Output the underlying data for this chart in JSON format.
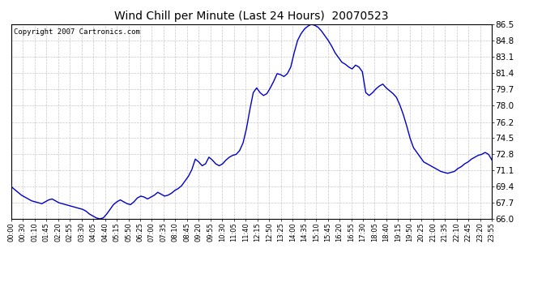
{
  "title": "Wind Chill per Minute (Last 24 Hours)  20070523",
  "copyright": "Copyright 2007 Cartronics.com",
  "line_color": "#0000cc",
  "background_color": "#ffffff",
  "plot_bg_color": "#ffffff",
  "grid_color": "#c8c8c8",
  "ylim": [
    66.0,
    86.5
  ],
  "yticks": [
    66.0,
    67.7,
    69.4,
    71.1,
    72.8,
    74.5,
    76.2,
    78.0,
    79.7,
    81.4,
    83.1,
    84.8,
    86.5
  ],
  "x_labels": [
    "00:00",
    "00:30",
    "01:10",
    "01:45",
    "02:20",
    "02:55",
    "03:30",
    "04:05",
    "04:40",
    "05:15",
    "05:50",
    "06:25",
    "07:00",
    "07:35",
    "08:10",
    "08:45",
    "09:20",
    "09:55",
    "10:30",
    "11:05",
    "11:40",
    "12:15",
    "12:50",
    "13:25",
    "14:00",
    "14:35",
    "15:10",
    "15:45",
    "16:20",
    "16:55",
    "17:30",
    "18:05",
    "18:40",
    "19:15",
    "19:50",
    "20:25",
    "21:00",
    "21:35",
    "22:10",
    "22:45",
    "23:20",
    "23:55"
  ],
  "data_y": [
    69.4,
    69.1,
    68.8,
    68.5,
    68.3,
    68.1,
    67.9,
    67.8,
    67.7,
    67.6,
    67.8,
    68.0,
    68.1,
    67.9,
    67.7,
    67.6,
    67.5,
    67.4,
    67.3,
    67.2,
    67.1,
    67.0,
    66.8,
    66.5,
    66.3,
    66.1,
    66.0,
    66.1,
    66.5,
    67.0,
    67.5,
    67.8,
    68.0,
    67.8,
    67.6,
    67.5,
    67.8,
    68.2,
    68.4,
    68.3,
    68.1,
    68.3,
    68.5,
    68.8,
    68.6,
    68.4,
    68.5,
    68.7,
    69.0,
    69.2,
    69.5,
    70.0,
    70.5,
    71.2,
    72.3,
    72.0,
    71.6,
    71.8,
    72.5,
    72.2,
    71.8,
    71.6,
    71.8,
    72.2,
    72.5,
    72.7,
    72.8,
    73.2,
    74.0,
    75.5,
    77.5,
    79.3,
    79.8,
    79.3,
    79.0,
    79.2,
    79.8,
    80.5,
    81.3,
    81.2,
    81.0,
    81.3,
    82.0,
    83.5,
    84.8,
    85.5,
    86.0,
    86.3,
    86.5,
    86.4,
    86.2,
    85.8,
    85.3,
    84.8,
    84.2,
    83.5,
    83.0,
    82.5,
    82.3,
    82.0,
    81.8,
    82.2,
    82.0,
    81.5,
    79.3,
    79.0,
    79.3,
    79.7,
    80.0,
    80.2,
    79.8,
    79.5,
    79.2,
    78.8,
    78.0,
    77.0,
    75.8,
    74.5,
    73.5,
    73.0,
    72.5,
    72.0,
    71.8,
    71.6,
    71.4,
    71.2,
    71.0,
    70.9,
    70.8,
    70.9,
    71.0,
    71.3,
    71.5,
    71.8,
    72.0,
    72.3,
    72.5,
    72.7,
    72.8,
    73.0,
    72.8,
    72.2
  ]
}
